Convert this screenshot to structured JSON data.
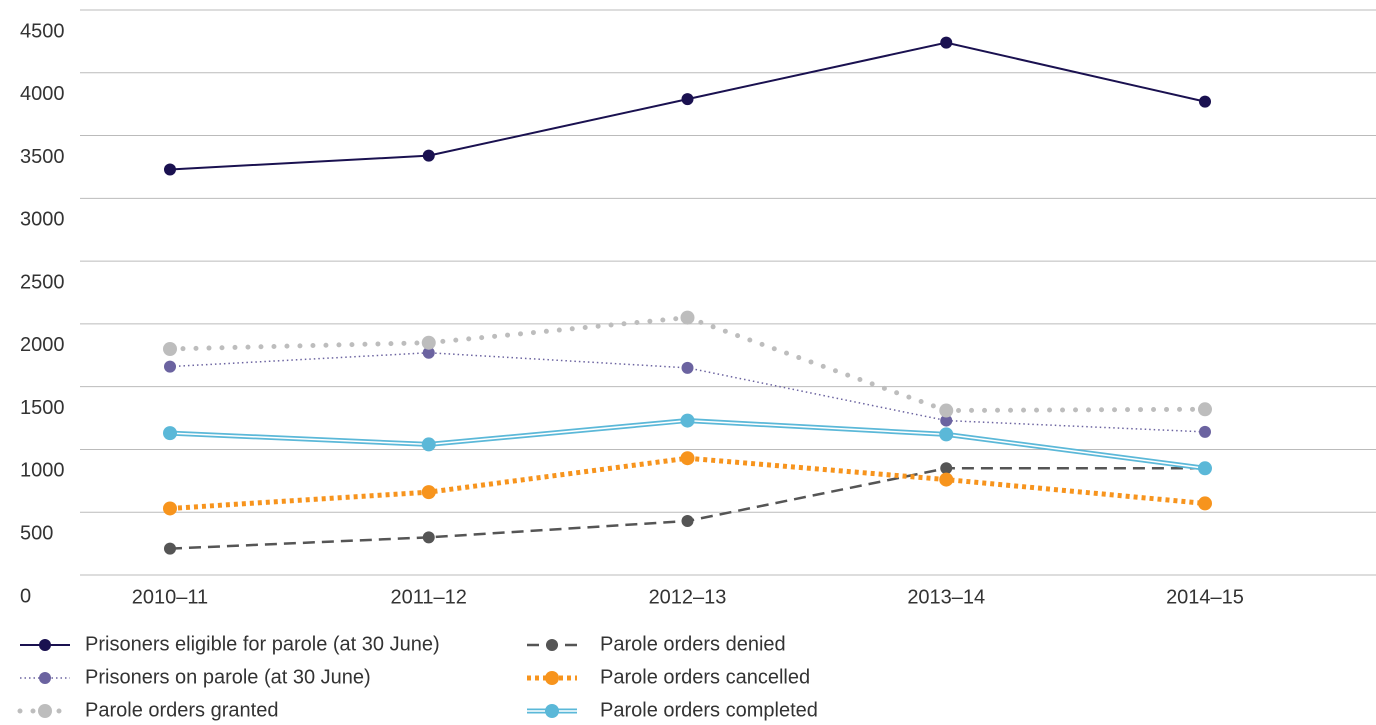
{
  "chart_data": {
    "type": "line",
    "categories": [
      "2010–11",
      "2011–12",
      "2012–13",
      "2013–14",
      "2014–15"
    ],
    "series": [
      {
        "name": "Prisoners eligible for parole (at 30 June)",
        "color": "#1a1150",
        "style": "solid",
        "values": [
          3230,
          3340,
          3790,
          4240,
          3770
        ]
      },
      {
        "name": "Prisoners on parole (at 30 June)",
        "color": "#6b63a0",
        "style": "dotted",
        "values": [
          1660,
          1770,
          1650,
          1230,
          1140
        ]
      },
      {
        "name": "Parole orders granted",
        "color": "#bdbdbd",
        "style": "dots",
        "values": [
          1800,
          1850,
          2050,
          1310,
          1320
        ]
      },
      {
        "name": "Parole orders denied",
        "color": "#555555",
        "style": "dashed",
        "values": [
          210,
          300,
          430,
          850,
          850
        ]
      },
      {
        "name": "Parole orders cancelled",
        "color": "#f7941d",
        "style": "thick-dotted",
        "values": [
          530,
          660,
          930,
          760,
          570
        ]
      },
      {
        "name": "Parole orders completed",
        "color": "#5bb8d8",
        "style": "double",
        "values": [
          1130,
          1040,
          1230,
          1120,
          850
        ]
      }
    ],
    "ylim": [
      0,
      4500
    ],
    "yticks": [
      0,
      500,
      1000,
      1500,
      2000,
      2500,
      3000,
      3500,
      4000,
      4500
    ],
    "grid": true
  }
}
